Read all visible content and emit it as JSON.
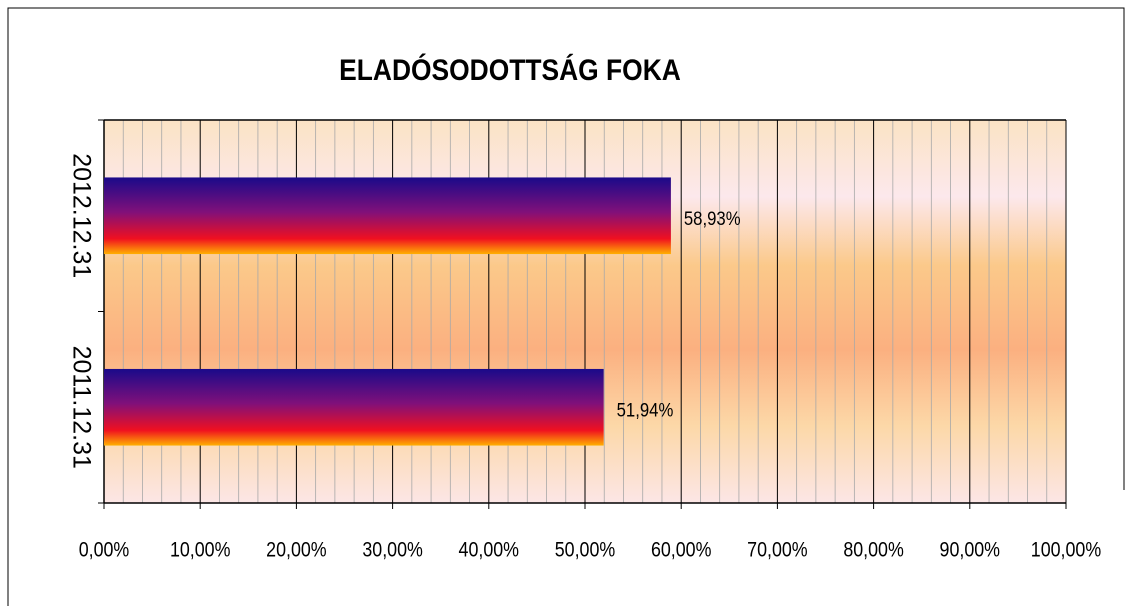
{
  "chart_data": {
    "type": "bar",
    "orientation": "horizontal",
    "title": "ELADÓSODOTTSÁG FOKA",
    "categories": [
      "2012.12.31",
      "2011.12.31"
    ],
    "values": [
      58.93,
      51.94
    ],
    "value_labels": [
      "58,93%",
      "51,94%"
    ],
    "xlim": [
      0,
      100
    ],
    "xticks": [
      {
        "value": 0,
        "label": "0,00%"
      },
      {
        "value": 10,
        "label": "10,00%"
      },
      {
        "value": 20,
        "label": "20,00%"
      },
      {
        "value": 30,
        "label": "30,00%"
      },
      {
        "value": 40,
        "label": "40,00%"
      },
      {
        "value": 50,
        "label": "50,00%"
      },
      {
        "value": 60,
        "label": "60,00%"
      },
      {
        "value": 70,
        "label": "70,00%"
      },
      {
        "value": 80,
        "label": "80,00%"
      },
      {
        "value": 90,
        "label": "90,00%"
      },
      {
        "value": 100,
        "label": "100,00%"
      }
    ],
    "grid": true
  }
}
